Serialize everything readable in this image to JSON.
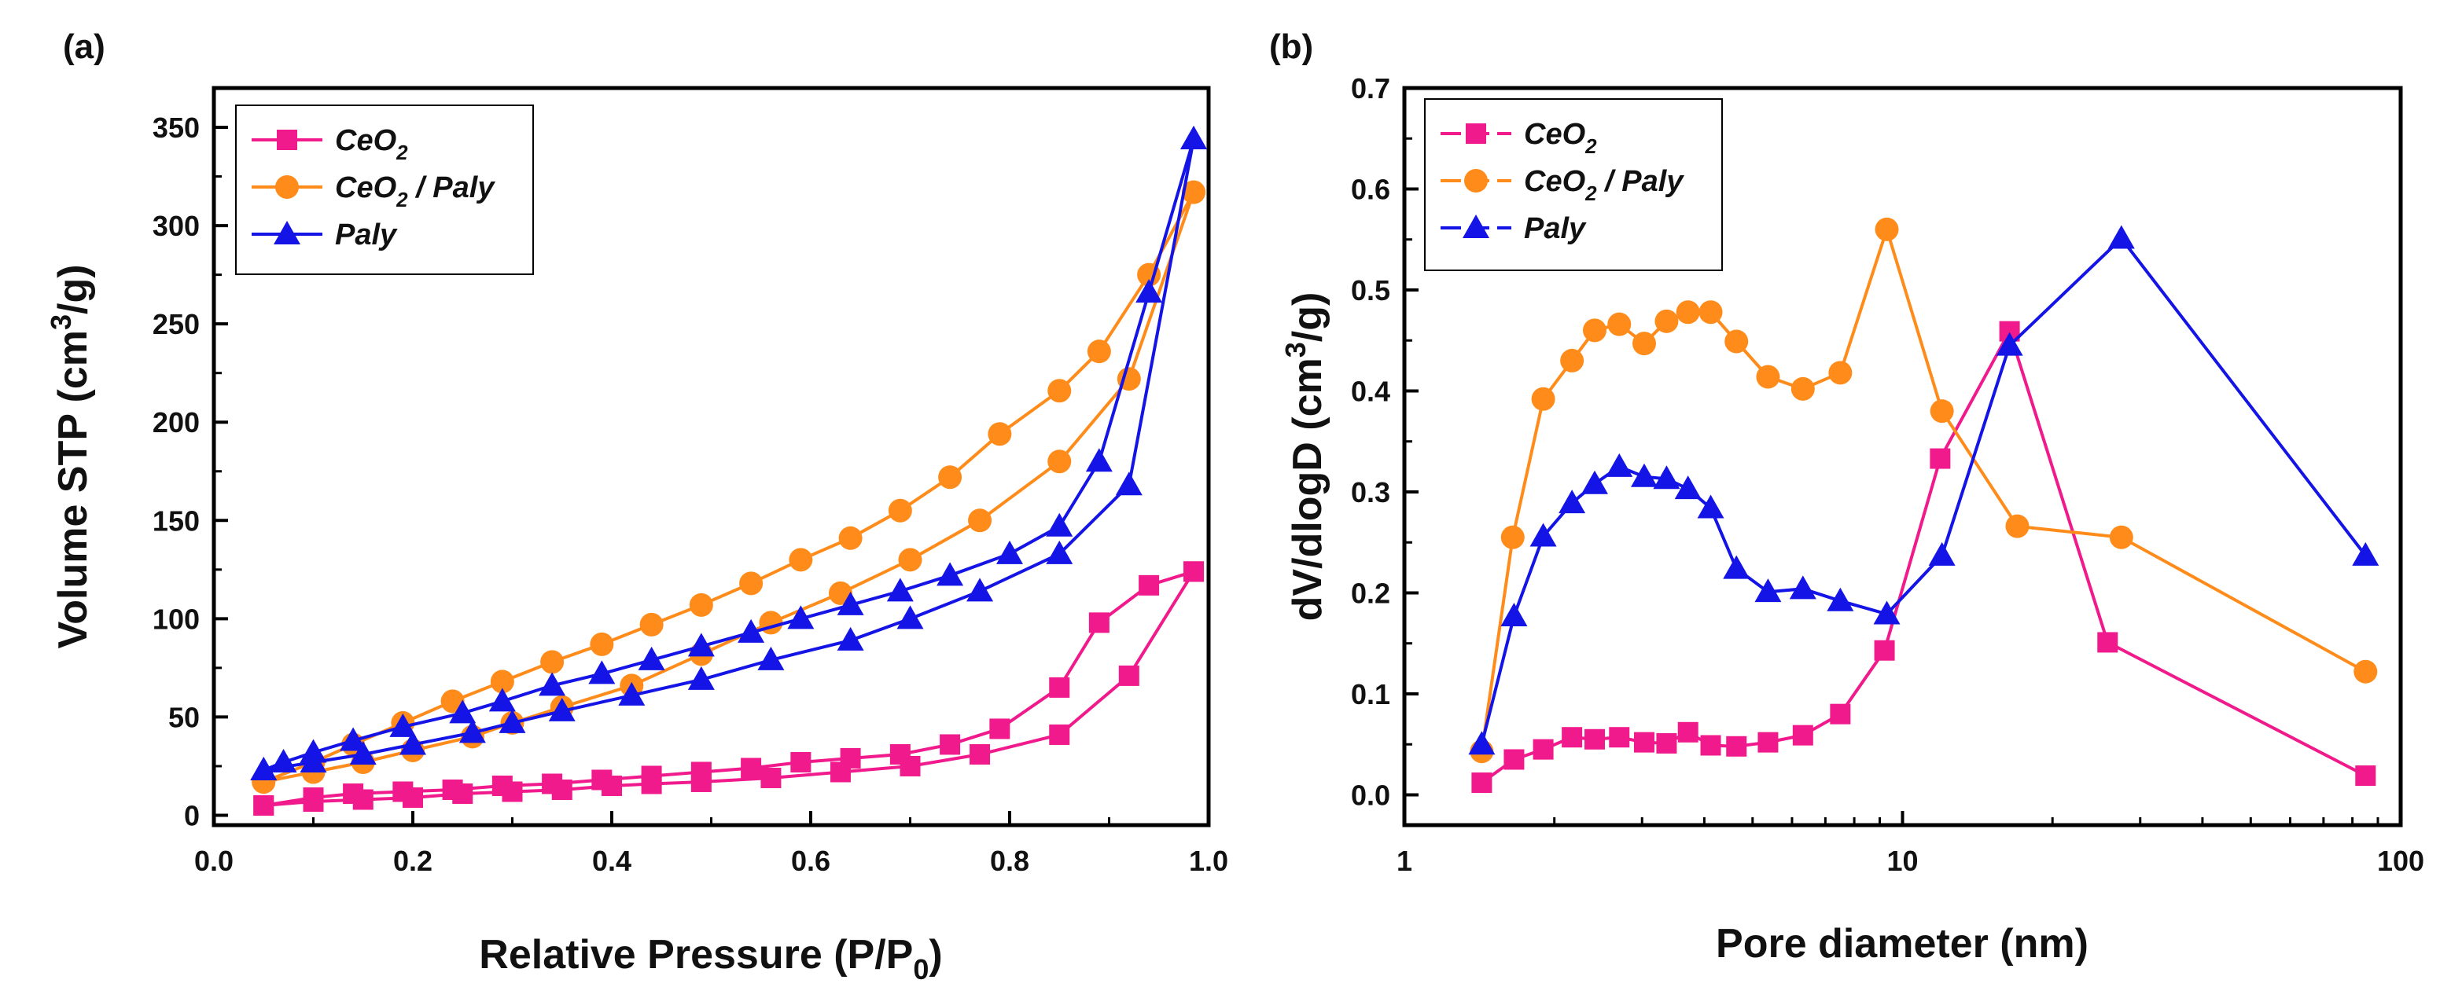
{
  "colors": {
    "ceo2": "#f01a8c",
    "ceo2_paly": "#ff8c1a",
    "paly": "#1414e6",
    "axis": "#000000"
  },
  "chart_data": [
    {
      "panel": "(a)",
      "type": "line",
      "xlabel_main": "Relative Pressure (P/P",
      "xlabel_sub": "0",
      "xlabel_end": ")",
      "ylabel_main": "Volume STP (cm",
      "ylabel_sup": "3",
      "ylabel_end": "/g)",
      "xscale": "linear",
      "xlim": [
        0.0,
        1.0
      ],
      "ylim": [
        -5,
        370
      ],
      "xticks": [
        0.0,
        0.2,
        0.4,
        0.6,
        0.8,
        1.0
      ],
      "xtick_labels": [
        "0.0",
        "0.2",
        "0.4",
        "0.6",
        "0.8",
        "1.0"
      ],
      "yticks": [
        0,
        50,
        100,
        150,
        200,
        250,
        300,
        350
      ],
      "ytick_labels": [
        "0",
        "50",
        "100",
        "150",
        "200",
        "250",
        "300",
        "350"
      ],
      "legend_position": "top-left",
      "series": [
        {
          "key": "ceo2",
          "name_main": "CeO",
          "name_sub": "2",
          "name_rest": "",
          "marker": "square",
          "adsorption": {
            "x": [
              0.05,
              0.1,
              0.15,
              0.2,
              0.25,
              0.3,
              0.35,
              0.4,
              0.44,
              0.49,
              0.56,
              0.63,
              0.7,
              0.77,
              0.85,
              0.92,
              0.985
            ],
            "y": [
              5,
              7,
              8,
              9,
              11,
              12,
              13,
              15,
              16,
              17,
              19,
              22,
              25,
              31,
              41,
              71,
              124
            ]
          },
          "desorption": {
            "x": [
              0.985,
              0.94,
              0.89,
              0.85,
              0.79,
              0.74,
              0.69,
              0.64,
              0.59,
              0.54,
              0.49,
              0.44,
              0.39,
              0.34,
              0.29,
              0.24,
              0.19,
              0.14,
              0.1,
              0.05
            ],
            "y": [
              124,
              117,
              98,
              65,
              44,
              36,
              31,
              29,
              27,
              24,
              22,
              20,
              18,
              16,
              15,
              13,
              12,
              11,
              9,
              5
            ]
          }
        },
        {
          "key": "ceo2_paly",
          "name_main": "CeO",
          "name_sub": "2",
          "name_rest": " / Paly",
          "marker": "circle",
          "adsorption": {
            "x": [
              0.05,
              0.1,
              0.15,
              0.2,
              0.26,
              0.3,
              0.35,
              0.42,
              0.49,
              0.56,
              0.63,
              0.7,
              0.77,
              0.85,
              0.92,
              0.985
            ],
            "y": [
              17,
              22,
              27,
              33,
              40,
              47,
              55,
              66,
              82,
              98,
              113,
              130,
              150,
              180,
              222,
              317
            ]
          },
          "desorption": {
            "x": [
              0.985,
              0.94,
              0.89,
              0.85,
              0.79,
              0.74,
              0.69,
              0.64,
              0.59,
              0.54,
              0.49,
              0.44,
              0.39,
              0.34,
              0.29,
              0.24,
              0.19,
              0.14,
              0.1,
              0.05
            ],
            "y": [
              317,
              275,
              236,
              216,
              194,
              172,
              155,
              141,
              130,
              118,
              107,
              97,
              87,
              78,
              68,
              58,
              47,
              36,
              27,
              17
            ]
          }
        },
        {
          "key": "paly",
          "name_main": "Paly",
          "name_sub": "",
          "name_rest": "",
          "marker": "triangle",
          "adsorption": {
            "x": [
              0.05,
              0.1,
              0.15,
              0.2,
              0.26,
              0.3,
              0.35,
              0.42,
              0.49,
              0.56,
              0.64,
              0.7,
              0.77,
              0.85,
              0.92,
              0.985
            ],
            "y": [
              23,
              27,
              31,
              36,
              42,
              47,
              53,
              61,
              69,
              79,
              89,
              100,
              114,
              133,
              168,
              344
            ]
          },
          "desorption": {
            "x": [
              0.985,
              0.94,
              0.89,
              0.85,
              0.8,
              0.74,
              0.69,
              0.64,
              0.59,
              0.54,
              0.49,
              0.44,
              0.39,
              0.34,
              0.29,
              0.25,
              0.19,
              0.14,
              0.1,
              0.07,
              0.05
            ],
            "y": [
              344,
              266,
              180,
              147,
              133,
              122,
              114,
              107,
              100,
              93,
              86,
              79,
              72,
              66,
              58,
              52,
              45,
              38,
              32,
              27,
              23
            ]
          }
        }
      ]
    },
    {
      "panel": "(b)",
      "type": "line",
      "xlabel_main": "Pore diameter (nm)",
      "xlabel_sub": "",
      "xlabel_end": "",
      "ylabel_main": "dV/dlogD (cm",
      "ylabel_sup": "3",
      "ylabel_end": "/g)",
      "xscale": "log",
      "xlim": [
        1,
        100
      ],
      "ylim": [
        -0.03,
        0.7
      ],
      "xticks": [
        1,
        10,
        100
      ],
      "xtick_labels": [
        "1",
        "10",
        "100"
      ],
      "yticks": [
        0.0,
        0.1,
        0.2,
        0.3,
        0.4,
        0.5,
        0.6,
        0.7
      ],
      "ytick_labels": [
        "0.0",
        "0.1",
        "0.2",
        "0.3",
        "0.4",
        "0.5",
        "0.6",
        "0.7"
      ],
      "legend_position": "top-left",
      "series": [
        {
          "key": "ceo2",
          "name_main": "CeO",
          "name_sub": "2",
          "name_rest": "",
          "marker": "square",
          "data": {
            "x": [
              1.43,
              1.66,
              1.9,
              2.17,
              2.41,
              2.7,
              3.03,
              3.36,
              3.71,
              4.12,
              4.64,
              5.37,
              6.31,
              7.5,
              9.2,
              11.9,
              16.4,
              25.8,
              85.0
            ],
            "y": [
              0.012,
              0.035,
              0.045,
              0.057,
              0.055,
              0.057,
              0.052,
              0.051,
              0.062,
              0.049,
              0.048,
              0.052,
              0.059,
              0.08,
              0.143,
              0.333,
              0.459,
              0.151,
              0.019
            ]
          }
        },
        {
          "key": "ceo2_paly",
          "name_main": "CeO",
          "name_sub": "2",
          "name_rest": " / Paly",
          "marker": "circle",
          "data": {
            "x": [
              1.43,
              1.65,
              1.9,
              2.17,
              2.41,
              2.7,
              3.03,
              3.36,
              3.71,
              4.12,
              4.64,
              5.37,
              6.31,
              7.5,
              9.3,
              12.0,
              17.0,
              27.5,
              85.0
            ],
            "y": [
              0.043,
              0.255,
              0.392,
              0.43,
              0.46,
              0.466,
              0.447,
              0.469,
              0.478,
              0.478,
              0.449,
              0.414,
              0.402,
              0.418,
              0.56,
              0.38,
              0.266,
              0.255,
              0.122
            ]
          }
        },
        {
          "key": "paly",
          "name_main": "Paly",
          "name_sub": "",
          "name_rest": "",
          "marker": "triangle",
          "data": {
            "x": [
              1.43,
              1.66,
              1.9,
              2.17,
              2.41,
              2.7,
              3.03,
              3.36,
              3.71,
              4.12,
              4.64,
              5.37,
              6.31,
              7.5,
              9.3,
              12.0,
              16.4,
              27.5,
              85.0
            ],
            "y": [
              0.05,
              0.177,
              0.256,
              0.289,
              0.308,
              0.325,
              0.315,
              0.313,
              0.303,
              0.284,
              0.224,
              0.201,
              0.204,
              0.192,
              0.179,
              0.237,
              0.445,
              0.551,
              0.237
            ]
          }
        }
      ]
    }
  ]
}
